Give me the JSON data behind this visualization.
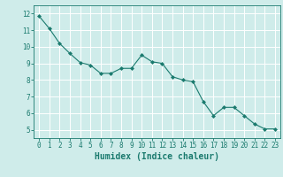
{
  "x": [
    0,
    1,
    2,
    3,
    4,
    5,
    6,
    7,
    8,
    9,
    10,
    11,
    12,
    13,
    14,
    15,
    16,
    17,
    18,
    19,
    20,
    21,
    22,
    23
  ],
  "y": [
    11.85,
    11.1,
    10.2,
    9.6,
    9.05,
    8.9,
    8.4,
    8.4,
    8.7,
    8.7,
    9.5,
    9.1,
    9.0,
    8.2,
    8.0,
    7.9,
    6.7,
    5.85,
    6.35,
    6.35,
    5.85,
    5.35,
    5.05,
    5.05
  ],
  "line_color": "#1a7a6e",
  "marker": "D",
  "marker_size": 2.0,
  "bg_color": "#cfecea",
  "grid_color": "#ffffff",
  "xlabel": "Humidex (Indice chaleur)",
  "xlim": [
    -0.5,
    23.5
  ],
  "ylim": [
    4.5,
    12.5
  ],
  "yticks": [
    5,
    6,
    7,
    8,
    9,
    10,
    11,
    12
  ],
  "xticks": [
    0,
    1,
    2,
    3,
    4,
    5,
    6,
    7,
    8,
    9,
    10,
    11,
    12,
    13,
    14,
    15,
    16,
    17,
    18,
    19,
    20,
    21,
    22,
    23
  ],
  "tick_color": "#1a7a6e",
  "label_fontsize": 7,
  "tick_fontsize": 5.5
}
